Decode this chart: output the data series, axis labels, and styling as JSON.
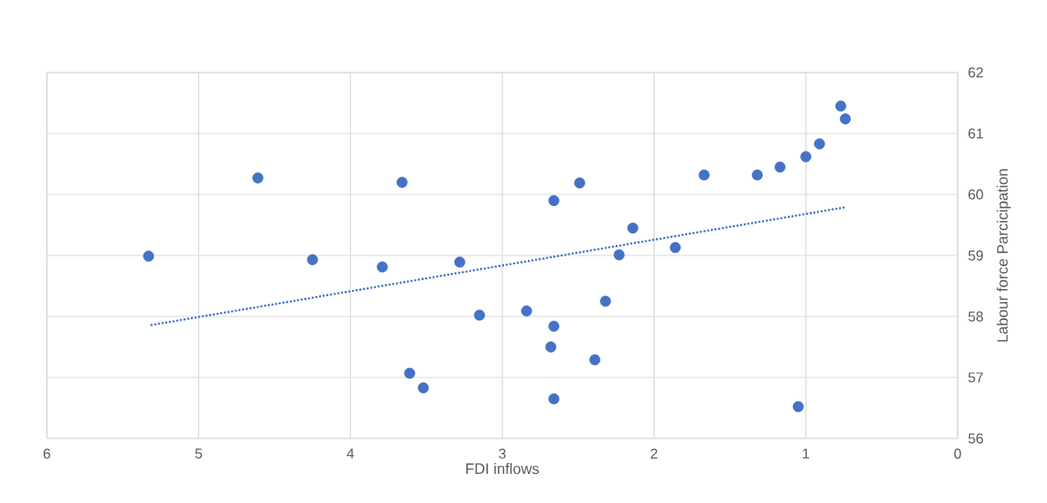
{
  "chart_data": {
    "type": "scatter",
    "xlabel": "FDI inflows",
    "ylabel": "Labour force Parcicipation",
    "xlim": [
      6,
      0
    ],
    "xticks": [
      6,
      5,
      4,
      3,
      2,
      1,
      0
    ],
    "ylim": [
      56,
      62
    ],
    "yticks": [
      56,
      57,
      58,
      59,
      60,
      61,
      62
    ],
    "grid": true,
    "marker": "circle",
    "series": [
      {
        "color": "#4472c4",
        "x": [
          5.33,
          4.61,
          4.25,
          3.79,
          3.66,
          3.28,
          3.61,
          3.52,
          3.15,
          2.84,
          2.66,
          2.49,
          2.66,
          2.68,
          2.66,
          2.39,
          2.32,
          2.14,
          2.23,
          1.86,
          1.67,
          1.32,
          1.17,
          1.0,
          0.91,
          0.77,
          0.74,
          1.05
        ],
        "values": [
          58.99,
          60.27,
          58.93,
          58.81,
          60.2,
          58.89,
          57.07,
          56.83,
          58.02,
          58.09,
          59.9,
          60.19,
          57.84,
          57.5,
          56.65,
          57.29,
          58.25,
          59.45,
          59.01,
          59.13,
          60.32,
          60.32,
          60.45,
          60.62,
          60.83,
          61.45,
          61.24,
          56.52
        ]
      },
      {
        "type": "line",
        "color": "#4472c4",
        "line_style": "dotted",
        "marker": "none",
        "x": [
          5.31,
          0.74
        ],
        "values": [
          57.86,
          59.79
        ]
      }
    ]
  }
}
